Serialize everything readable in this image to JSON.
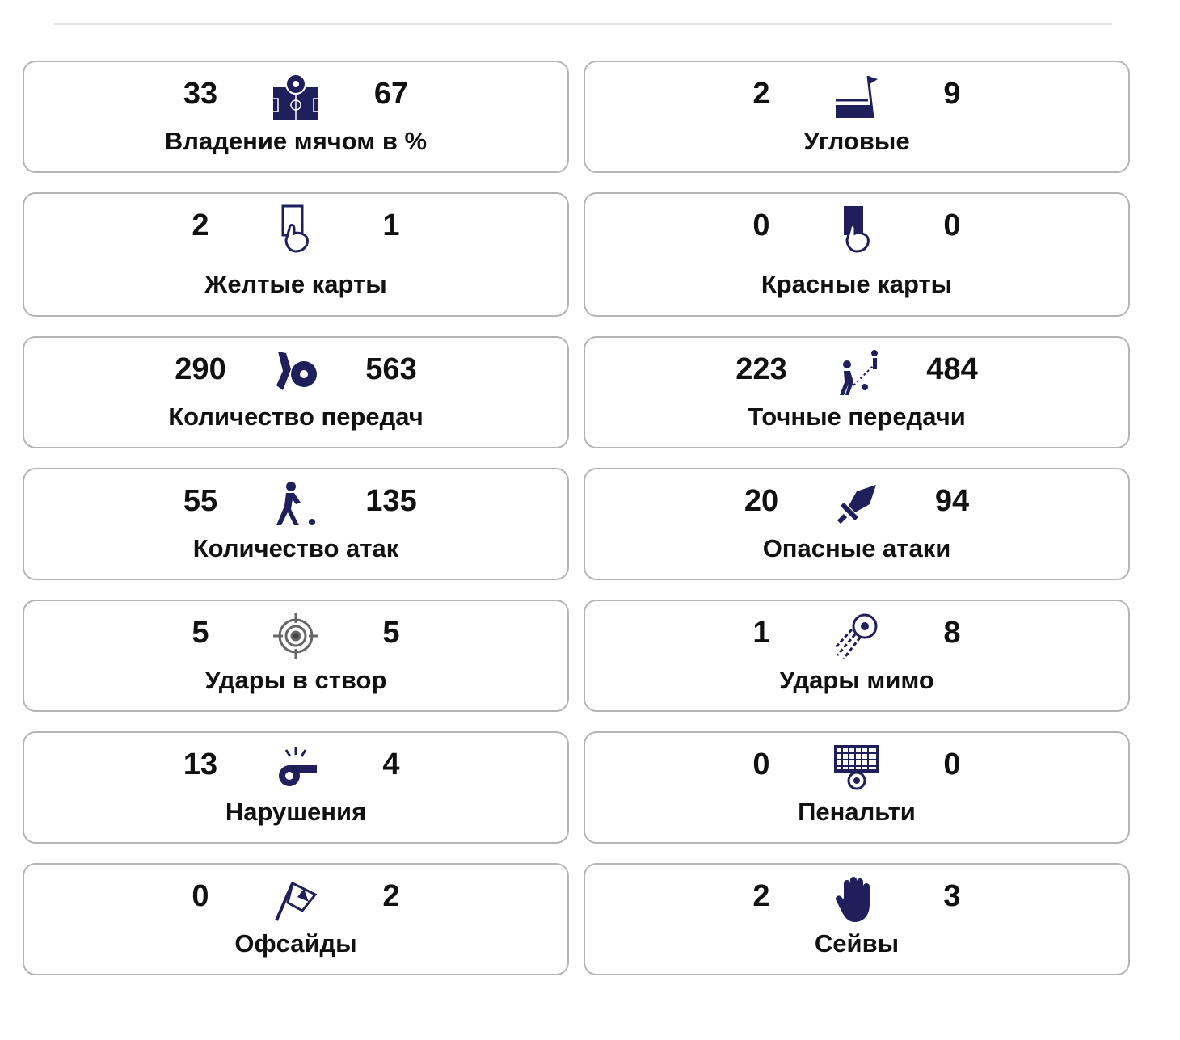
{
  "accent_color": "#1f1f5c",
  "stats": [
    {
      "label": "Владение мячом в %",
      "home": "33",
      "away": "67",
      "icon": "field-ball-icon"
    },
    {
      "label": "Угловые",
      "home": "2",
      "away": "9",
      "icon": "corner-flag-icon"
    },
    {
      "label": "Желтые карты",
      "home": "2",
      "away": "1",
      "icon": "yellow-card-icon"
    },
    {
      "label": "Красные карты",
      "home": "0",
      "away": "0",
      "icon": "red-card-icon"
    },
    {
      "label": "Количество передач",
      "home": "290",
      "away": "563",
      "icon": "pass-icon"
    },
    {
      "label": "Точные передачи",
      "home": "223",
      "away": "484",
      "icon": "accurate-pass-icon"
    },
    {
      "label": "Количество атак",
      "home": "55",
      "away": "135",
      "icon": "attack-runner-icon"
    },
    {
      "label": "Опасные атаки",
      "home": "20",
      "away": "94",
      "icon": "sword-icon"
    },
    {
      "label": "Удары в створ",
      "home": "5",
      "away": "5",
      "icon": "target-icon"
    },
    {
      "label": "Удары мимо",
      "home": "1",
      "away": "8",
      "icon": "ball-shot-icon"
    },
    {
      "label": "Нарушения",
      "home": "13",
      "away": "4",
      "icon": "whistle-icon"
    },
    {
      "label": "Пенальти",
      "home": "0",
      "away": "0",
      "icon": "goal-net-icon"
    },
    {
      "label": "Офсайды",
      "home": "0",
      "away": "2",
      "icon": "offside-flag-icon"
    },
    {
      "label": "Сейвы",
      "home": "2",
      "away": "3",
      "icon": "goalkeeper-glove-icon"
    }
  ]
}
